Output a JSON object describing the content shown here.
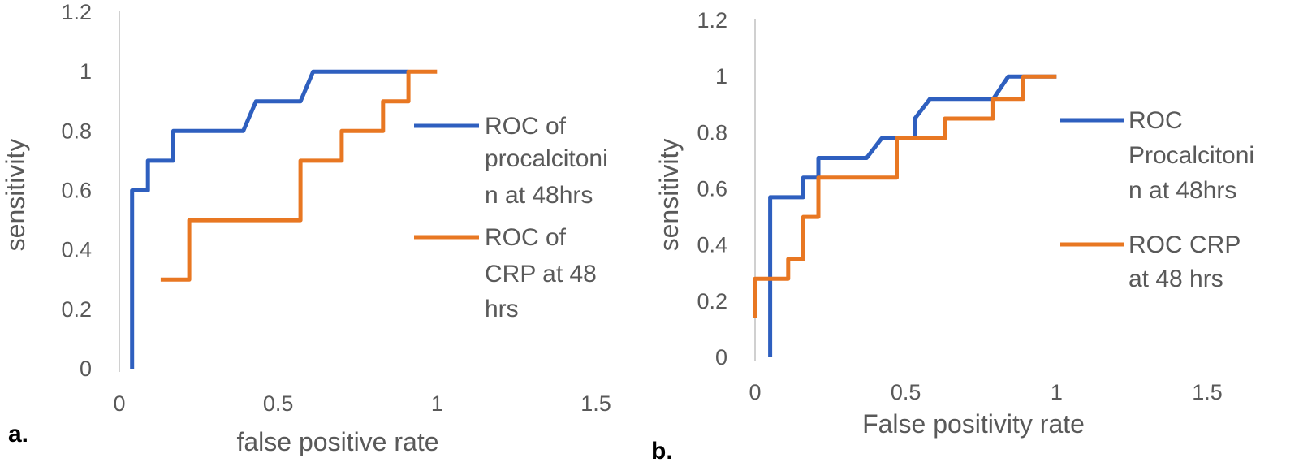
{
  "chart_data": [
    {
      "type": "line",
      "panel_label": "a.",
      "xlabel": "false positive rate",
      "ylabel": "sensitivity",
      "xlim": [
        0,
        1.5
      ],
      "ylim": [
        0,
        1.2
      ],
      "xticks": [
        "0",
        "0.5",
        "1",
        "1.5"
      ],
      "yticks": [
        "0",
        "0.2",
        "0.4",
        "0.6",
        "0.8",
        "1",
        "1.2"
      ],
      "grid": false,
      "legend_position": "right",
      "series": [
        {
          "name": "ROC of procalcitonin at 48hrs",
          "legend_lines": [
            "ROC of",
            "procalcitoni",
            "n at 48hrs"
          ],
          "color": "#2e5fbf",
          "points": [
            [
              0.04,
              0
            ],
            [
              0.04,
              0.6
            ],
            [
              0.09,
              0.6
            ],
            [
              0.09,
              0.7
            ],
            [
              0.17,
              0.7
            ],
            [
              0.17,
              0.8
            ],
            [
              0.39,
              0.8
            ],
            [
              0.43,
              0.9
            ],
            [
              0.57,
              0.9
            ],
            [
              0.61,
              1.0
            ],
            [
              0.91,
              1.0
            ]
          ]
        },
        {
          "name": "ROC of CRP at 48 hrs",
          "legend_lines": [
            "ROC of",
            "CRP at 48",
            "hrs"
          ],
          "color": "#e87722",
          "points": [
            [
              0.13,
              0.3
            ],
            [
              0.22,
              0.3
            ],
            [
              0.22,
              0.5
            ],
            [
              0.57,
              0.5
            ],
            [
              0.57,
              0.7
            ],
            [
              0.7,
              0.7
            ],
            [
              0.7,
              0.8
            ],
            [
              0.83,
              0.8
            ],
            [
              0.83,
              0.9
            ],
            [
              0.91,
              0.9
            ],
            [
              0.91,
              1.0
            ],
            [
              1.0,
              1.0
            ]
          ]
        }
      ]
    },
    {
      "type": "line",
      "panel_label": "b.",
      "xlabel": "False positivity rate",
      "ylabel": "sensitivity",
      "xlim": [
        0,
        1.5
      ],
      "ylim": [
        0,
        1.2
      ],
      "xticks": [
        "0",
        "0.5",
        "1",
        "1.5"
      ],
      "yticks": [
        "0",
        "0.2",
        "0.4",
        "0.6",
        "0.8",
        "1",
        "1.2"
      ],
      "grid": false,
      "legend_position": "right",
      "series": [
        {
          "name": "ROC Procalcitonin at 48hrs",
          "legend_lines": [
            "ROC",
            "Procalcitoni",
            "n at 48hrs"
          ],
          "color": "#2e5fbf",
          "points": [
            [
              0.05,
              0
            ],
            [
              0.05,
              0.57
            ],
            [
              0.16,
              0.57
            ],
            [
              0.16,
              0.64
            ],
            [
              0.21,
              0.64
            ],
            [
              0.21,
              0.71
            ],
            [
              0.37,
              0.71
            ],
            [
              0.42,
              0.78
            ],
            [
              0.53,
              0.78
            ],
            [
              0.53,
              0.85
            ],
            [
              0.58,
              0.92
            ],
            [
              0.79,
              0.92
            ],
            [
              0.84,
              1.0
            ],
            [
              1.0,
              1.0
            ]
          ]
        },
        {
          "name": "ROC CRP at 48 hrs",
          "legend_lines": [
            "ROC CRP",
            "at 48 hrs"
          ],
          "color": "#e87722",
          "points": [
            [
              0,
              0.14
            ],
            [
              0,
              0.28
            ],
            [
              0.11,
              0.28
            ],
            [
              0.11,
              0.35
            ],
            [
              0.16,
              0.35
            ],
            [
              0.16,
              0.5
            ],
            [
              0.21,
              0.5
            ],
            [
              0.21,
              0.64
            ],
            [
              0.47,
              0.64
            ],
            [
              0.47,
              0.78
            ],
            [
              0.63,
              0.78
            ],
            [
              0.63,
              0.85
            ],
            [
              0.79,
              0.85
            ],
            [
              0.79,
              0.92
            ],
            [
              0.89,
              0.92
            ],
            [
              0.89,
              1.0
            ],
            [
              1.0,
              1.0
            ]
          ]
        }
      ]
    }
  ]
}
